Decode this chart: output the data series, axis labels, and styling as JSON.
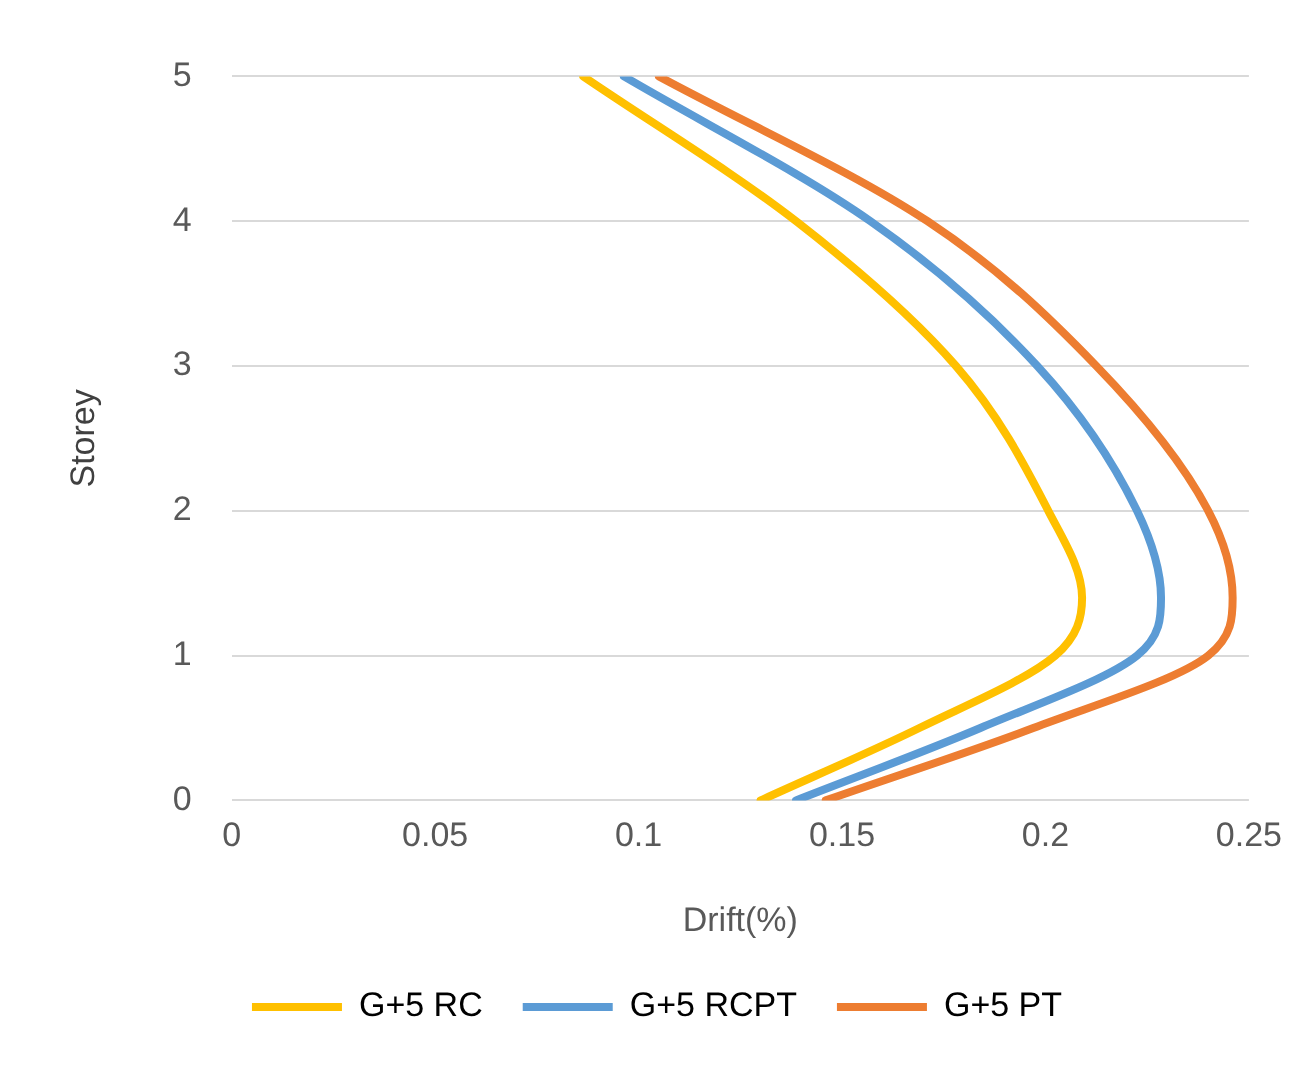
{
  "chart_data": {
    "type": "line",
    "xlabel": "Drift(%)",
    "ylabel": "Storey",
    "xlim": [
      0,
      0.25
    ],
    "xticks": [
      0,
      0.05,
      0.1,
      0.15,
      0.2,
      0.25
    ],
    "ylim": [
      0,
      5
    ],
    "yticks": [
      0,
      1,
      2,
      3,
      4,
      5
    ],
    "grid": "y",
    "legend": "bottom",
    "marker": "none",
    "series": [
      {
        "name": "G+5 RC",
        "color": "#ffc000",
        "x": [
          0.13,
          0.169,
          0.2024,
          0.209,
          0.2007,
          0.178,
          0.1387,
          0.0864
        ],
        "values": [
          0,
          0.5,
          1,
          1.4,
          2,
          3,
          4,
          5
        ]
      },
      {
        "name": "G+5 RCPT",
        "color": "#5b9bd5",
        "x": [
          0.1387,
          0.184,
          0.2225,
          0.2284,
          0.2225,
          0.198,
          0.157,
          0.0964
        ],
        "values": [
          0,
          0.5,
          1,
          1.4,
          2,
          3,
          4,
          5
        ]
      },
      {
        "name": "G+5 PT",
        "color": "#ed7d31",
        "x": [
          0.146,
          0.197,
          0.24,
          0.246,
          0.24,
          0.2125,
          0.171,
          0.105
        ],
        "values": [
          0,
          0.5,
          1,
          1.4,
          2,
          3,
          4,
          5
        ]
      }
    ]
  }
}
